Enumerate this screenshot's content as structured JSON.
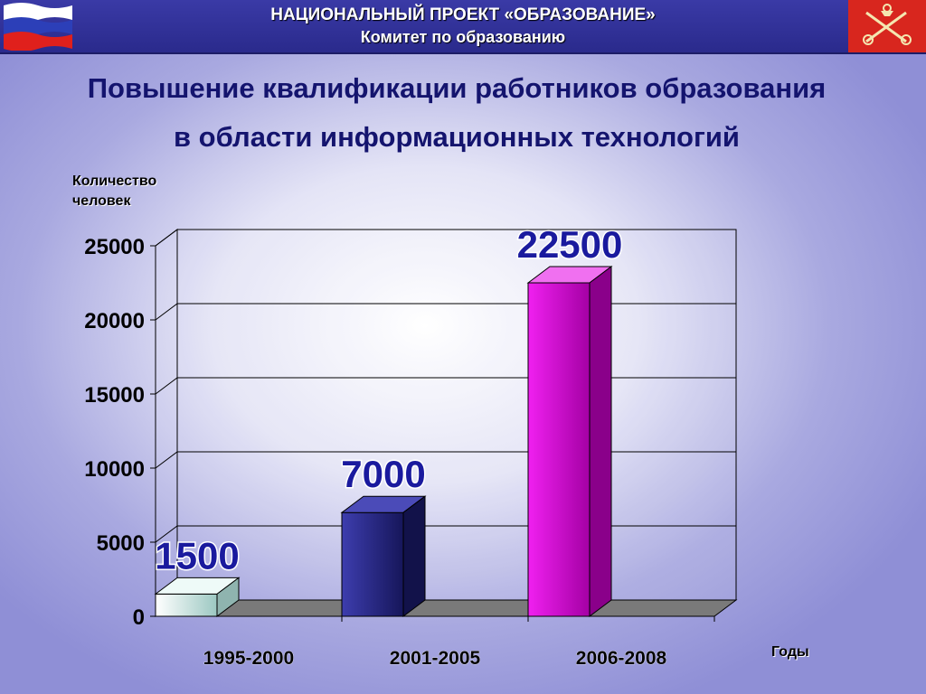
{
  "header": {
    "line1": "НАЦИОНАЛЬНЫЙ ПРОЕКТ «ОБРАЗОВАНИЕ»",
    "line2": "Комитет по образованию",
    "flag_icon": "russian-flag-icon",
    "emblem_icon": "st-petersburg-emblem-icon",
    "bar_color": "#2e2e92"
  },
  "title": {
    "line1": "Повышение квалификации работников образования",
    "line2": "в области информационных технологий"
  },
  "chart_data": {
    "type": "bar",
    "categories": [
      "1995-2000",
      "2001-2005",
      "2006-2008"
    ],
    "values": [
      1500,
      7000,
      22500
    ],
    "data_labels": [
      "1500",
      "7000",
      "22500"
    ],
    "ylabel_line1": "Количество",
    "ylabel_line2": "человек",
    "xlabel": "Годы",
    "ylim": [
      0,
      25000
    ],
    "yticks": [
      0,
      5000,
      10000,
      15000,
      20000,
      25000
    ],
    "ytick_labels": [
      "0",
      "5000",
      "10000",
      "15000",
      "20000",
      "25000"
    ],
    "grid": true,
    "style": "3d",
    "bar_colors": [
      "#d6f2ee",
      "#2a2a8a",
      "#dd00dd"
    ]
  }
}
